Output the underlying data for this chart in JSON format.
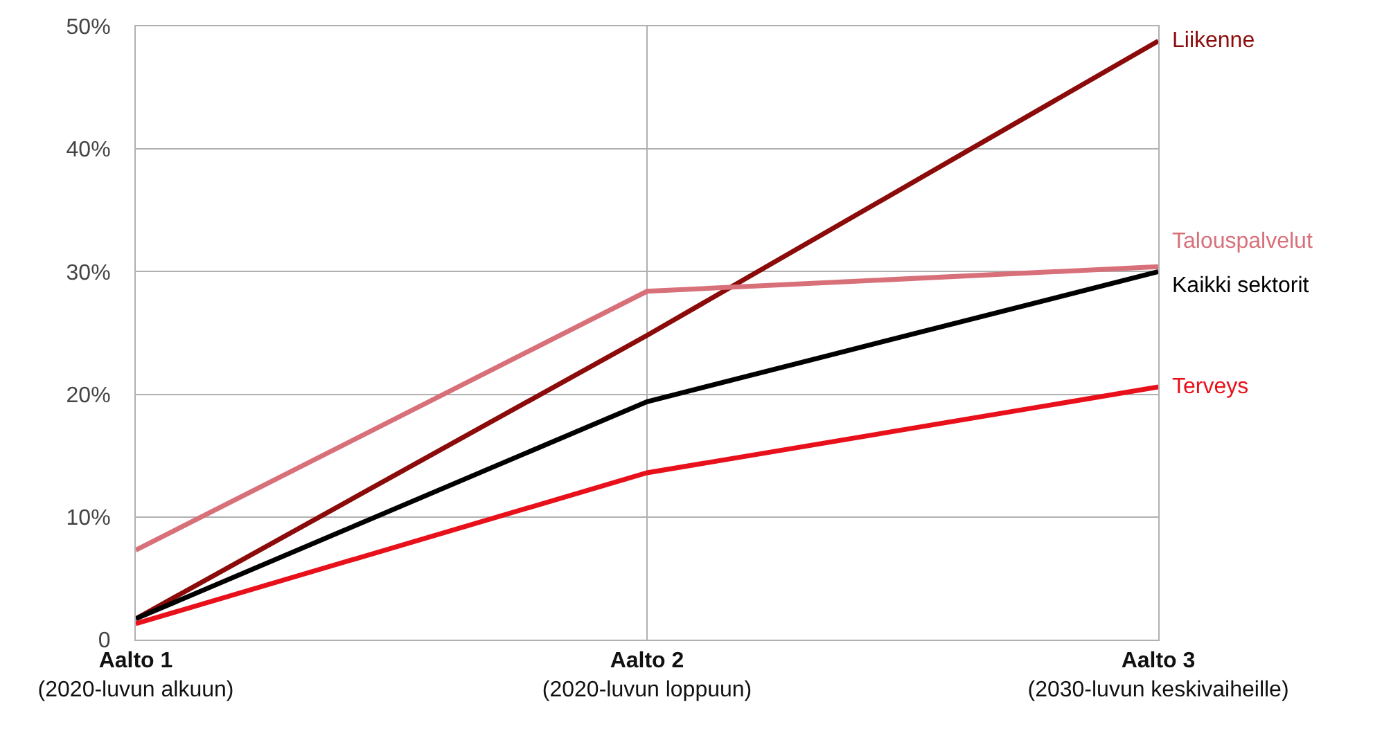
{
  "chart_data": {
    "type": "line",
    "categories": [
      "Aalto 1\n(2020-luvun alkuun)",
      "Aalto 2\n(2020-luvun loppuun)",
      "Aalto 3\n(2030-luvun keskivaiheille)"
    ],
    "series": [
      {
        "name": "Liikenne",
        "color": "#8b0a0a",
        "values": [
          1.7,
          24.8,
          48.8
        ]
      },
      {
        "name": "Talouspalvelut",
        "color": "#d8707a",
        "values": [
          7.3,
          28.4,
          30.4
        ]
      },
      {
        "name": "Kaikki sektorit",
        "color": "#000000",
        "values": [
          1.7,
          19.4,
          30.0
        ]
      },
      {
        "name": "Terveys",
        "color": "#e8101a",
        "values": [
          1.3,
          13.6,
          20.6
        ]
      }
    ],
    "ylim": [
      0,
      50
    ],
    "yticks": [
      {
        "value": 0,
        "label": "0"
      },
      {
        "value": 10,
        "label": "10%"
      },
      {
        "value": 20,
        "label": "20%"
      },
      {
        "value": 30,
        "label": "30%"
      },
      {
        "value": 40,
        "label": "40%"
      },
      {
        "value": 50,
        "label": "50%"
      }
    ],
    "grid": true,
    "legend": false,
    "marker": "none",
    "line_style": "solid"
  }
}
